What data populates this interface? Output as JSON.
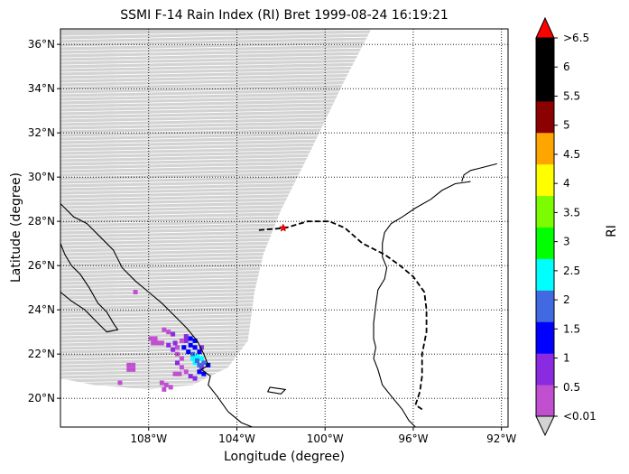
{
  "title": "SSMI F-14 Rain Index (RI) Bret 1999-08-24 16:19:21",
  "xlabel": "Longitude (degree)",
  "ylabel": "Latitude (degree)",
  "colorbar": {
    "label": "RI",
    "tick_labels": [
      "<0.01",
      "0.5",
      "1",
      "1.5",
      "2",
      "2.5",
      "3",
      "3.5",
      "4",
      "4.5",
      "5",
      "5.5",
      "6",
      ">6.5"
    ],
    "bins": [
      {
        "color": "#c050d0"
      },
      {
        "color": "#8a2be2"
      },
      {
        "color": "#0000ff"
      },
      {
        "color": "#4169e1"
      },
      {
        "color": "#00ffff"
      },
      {
        "color": "#00ff00"
      },
      {
        "color": "#7cfc00"
      },
      {
        "color": "#ffff00"
      },
      {
        "color": "#ffa500"
      },
      {
        "color": "#8b0000"
      },
      {
        "color": "#000000"
      },
      {
        "color": "#000000"
      }
    ],
    "under_color": "#d3d3d3",
    "over_color": "#ff0000"
  },
  "chart_data": {
    "type": "map",
    "xlim": [
      -112,
      -91.7
    ],
    "ylim": [
      18.7,
      36.7
    ],
    "lon_ticks": [
      {
        "value": -108,
        "label": "108°W"
      },
      {
        "value": -104,
        "label": "104°W"
      },
      {
        "value": -100,
        "label": "100°W"
      },
      {
        "value": -96,
        "label": "96°W"
      },
      {
        "value": -92,
        "label": "92°W"
      }
    ],
    "lat_ticks": [
      {
        "value": 20,
        "label": "20°N"
      },
      {
        "value": 22,
        "label": "22°N"
      },
      {
        "value": 24,
        "label": "24°N"
      },
      {
        "value": 26,
        "label": "26°N"
      },
      {
        "value": 28,
        "label": "28°N"
      },
      {
        "value": 30,
        "label": "30°N"
      },
      {
        "value": 32,
        "label": "32°N"
      },
      {
        "value": 34,
        "label": "34°N"
      },
      {
        "value": 36,
        "label": "36°N"
      }
    ],
    "grid": true,
    "swath": {
      "polygon": [
        [
          -112,
          36.7
        ],
        [
          -97.9,
          36.7
        ],
        [
          -99.2,
          34.2
        ],
        [
          -100.6,
          31.3
        ],
        [
          -102,
          28.5
        ],
        [
          -102.8,
          26.5
        ],
        [
          -103.2,
          24.8
        ],
        [
          -103.5,
          22.6
        ],
        [
          -104.4,
          21.4
        ],
        [
          -106,
          20.6
        ],
        [
          -108,
          20.4
        ],
        [
          -110.5,
          20.6
        ],
        [
          -112,
          20.9
        ]
      ],
      "color": "#d3d3d3"
    },
    "rain_points": [
      [
        -109.3,
        20.7,
        0
      ],
      [
        -108.9,
        21.5,
        0
      ],
      [
        -108.7,
        21.5,
        0
      ],
      [
        -108.9,
        21.3,
        0
      ],
      [
        -108.7,
        21.3,
        0
      ],
      [
        -108.6,
        24.8,
        0
      ],
      [
        -107.9,
        22.7,
        0
      ],
      [
        -107.7,
        22.7,
        0
      ],
      [
        -107.8,
        22.5,
        0
      ],
      [
        -107.6,
        22.5,
        0
      ],
      [
        -107.4,
        22.5,
        0
      ],
      [
        -107.3,
        23.1,
        0
      ],
      [
        -107.1,
        23.0,
        0
      ],
      [
        -106.9,
        22.9,
        1
      ],
      [
        -107.1,
        22.4,
        1
      ],
      [
        -106.9,
        22.2,
        1
      ],
      [
        -106.7,
        22.0,
        0
      ],
      [
        -106.5,
        21.8,
        0
      ],
      [
        -106.7,
        21.6,
        1
      ],
      [
        -106.5,
        21.4,
        0
      ],
      [
        -106.8,
        21.1,
        0
      ],
      [
        -106.6,
        21.1,
        0
      ],
      [
        -106.3,
        21.2,
        0
      ],
      [
        -106.1,
        21.0,
        1
      ],
      [
        -105.9,
        20.9,
        1
      ],
      [
        -105.7,
        21.2,
        2
      ],
      [
        -105.6,
        21.4,
        1
      ],
      [
        -105.5,
        21.1,
        2
      ],
      [
        -107.4,
        20.7,
        0
      ],
      [
        -107.2,
        20.6,
        0
      ],
      [
        -107.3,
        20.4,
        0
      ],
      [
        -107.0,
        20.5,
        0
      ],
      [
        -106.3,
        22.6,
        1
      ],
      [
        -106.1,
        22.4,
        2
      ],
      [
        -105.9,
        22.3,
        2
      ],
      [
        -105.7,
        22.1,
        2
      ],
      [
        -106.4,
        22.3,
        2
      ],
      [
        -106.2,
        22.1,
        2
      ],
      [
        -106.0,
        22.0,
        3
      ],
      [
        -105.8,
        21.9,
        4
      ],
      [
        -105.6,
        21.8,
        4
      ],
      [
        -105.9,
        21.6,
        4
      ],
      [
        -105.7,
        21.5,
        3
      ],
      [
        -105.5,
        21.6,
        3
      ],
      [
        -105.3,
        21.5,
        2
      ],
      [
        -106.5,
        22.6,
        0
      ],
      [
        -106.3,
        22.8,
        1
      ],
      [
        -106.1,
        22.7,
        2
      ],
      [
        -105.9,
        22.6,
        2
      ],
      [
        -106.7,
        22.3,
        0
      ],
      [
        -106.8,
        22.5,
        1
      ],
      [
        -106.0,
        21.8,
        4
      ],
      [
        -105.6,
        22.3,
        1
      ],
      [
        -105.8,
        21.7,
        3
      ]
    ],
    "coast_west": [
      [
        -112,
        28.8
      ],
      [
        -111.4,
        28.2
      ],
      [
        -110.8,
        27.9
      ],
      [
        -110.2,
        27.3
      ],
      [
        -109.6,
        26.7
      ],
      [
        -109.2,
        25.9
      ],
      [
        -108.6,
        25.3
      ],
      [
        -108.0,
        24.8
      ],
      [
        -107.4,
        24.3
      ],
      [
        -106.8,
        23.7
      ],
      [
        -106.3,
        23.2
      ],
      [
        -105.8,
        22.6
      ],
      [
        -105.5,
        22.0
      ],
      [
        -105.3,
        21.5
      ],
      [
        -105.6,
        21.3
      ],
      [
        -105.2,
        21.0
      ],
      [
        -105.3,
        20.6
      ],
      [
        -104.9,
        20.1
      ],
      [
        -104.4,
        19.4
      ],
      [
        -103.8,
        18.9
      ],
      [
        -103.3,
        18.7
      ]
    ],
    "baja": [
      [
        -112,
        27.0
      ],
      [
        -111.8,
        26.5
      ],
      [
        -111.5,
        26.0
      ],
      [
        -111.1,
        25.6
      ],
      [
        -110.7,
        25.0
      ],
      [
        -110.3,
        24.3
      ],
      [
        -109.9,
        23.9
      ],
      [
        -109.6,
        23.4
      ],
      [
        -109.4,
        23.1
      ],
      [
        -109.9,
        23.0
      ],
      [
        -110.3,
        23.4
      ],
      [
        -110.9,
        24.0
      ],
      [
        -111.5,
        24.4
      ],
      [
        -112,
        24.8
      ]
    ],
    "gulf_coast": [
      [
        -93.4,
        29.8
      ],
      [
        -94.1,
        29.7
      ],
      [
        -94.7,
        29.4
      ],
      [
        -95.2,
        29.0
      ],
      [
        -95.9,
        28.6
      ],
      [
        -96.5,
        28.2
      ],
      [
        -97.0,
        27.9
      ],
      [
        -97.3,
        27.5
      ],
      [
        -97.4,
        27.0
      ],
      [
        -97.4,
        26.4
      ],
      [
        -97.2,
        25.9
      ],
      [
        -97.3,
        25.4
      ],
      [
        -97.6,
        24.9
      ],
      [
        -97.7,
        24.2
      ],
      [
        -97.8,
        23.4
      ],
      [
        -97.8,
        22.7
      ],
      [
        -97.7,
        22.3
      ],
      [
        -97.8,
        21.8
      ],
      [
        -97.6,
        21.3
      ],
      [
        -97.4,
        20.6
      ],
      [
        -97.0,
        20.1
      ],
      [
        -96.5,
        19.5
      ],
      [
        -96.2,
        19.0
      ],
      [
        -95.9,
        18.7
      ]
    ],
    "border": [
      [
        -92.2,
        30.6
      ],
      [
        -92.6,
        30.5
      ],
      [
        -93.0,
        30.4
      ],
      [
        -93.4,
        30.3
      ],
      [
        -93.7,
        30.1
      ],
      [
        -93.8,
        29.8
      ]
    ],
    "lake": [
      [
        -102.5,
        20.5
      ],
      [
        -101.8,
        20.4
      ],
      [
        -102.0,
        20.2
      ],
      [
        -102.6,
        20.3
      ],
      [
        -102.5,
        20.5
      ]
    ],
    "track": [
      [
        -103.0,
        27.6
      ],
      [
        -101.8,
        27.7
      ],
      [
        -100.8,
        28.0
      ],
      [
        -99.8,
        28.0
      ],
      [
        -99.1,
        27.7
      ],
      [
        -98.3,
        27.0
      ],
      [
        -97.3,
        26.5
      ],
      [
        -96.6,
        26.0
      ],
      [
        -96.0,
        25.5
      ],
      [
        -95.5,
        24.8
      ],
      [
        -95.4,
        24.0
      ],
      [
        -95.4,
        23.0
      ],
      [
        -95.6,
        22.0
      ],
      [
        -95.6,
        21.0
      ],
      [
        -95.7,
        20.3
      ],
      [
        -95.9,
        19.7
      ],
      [
        -95.6,
        19.5
      ]
    ],
    "center_marker": [
      -101.9,
      27.7
    ]
  }
}
